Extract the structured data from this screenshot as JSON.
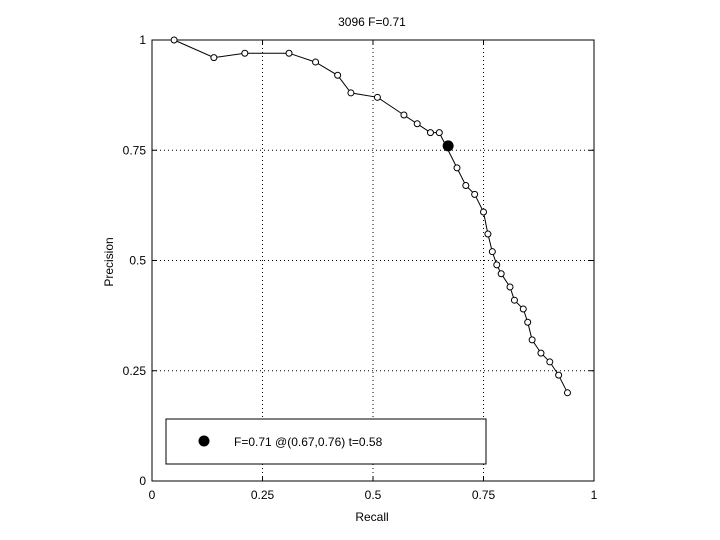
{
  "chart_data": {
    "type": "line",
    "title": "3096 F=0.71",
    "xlabel": "Recall",
    "ylabel": "Precision",
    "xlim": [
      0,
      1
    ],
    "ylim": [
      0,
      1
    ],
    "xticks": [
      "0",
      "0.25",
      "0.5",
      "0.75",
      "1"
    ],
    "yticks": [
      "0",
      "0.25",
      "0.5",
      "0.75",
      "1"
    ],
    "grid": true,
    "legend_position": "bottom-left",
    "series": [
      {
        "marker": "open-circle",
        "points": [
          [
            0.05,
            1.0
          ],
          [
            0.14,
            0.96
          ],
          [
            0.21,
            0.97
          ],
          [
            0.31,
            0.97
          ],
          [
            0.37,
            0.95
          ],
          [
            0.42,
            0.92
          ],
          [
            0.45,
            0.88
          ],
          [
            0.51,
            0.87
          ],
          [
            0.57,
            0.83
          ],
          [
            0.6,
            0.81
          ],
          [
            0.63,
            0.79
          ],
          [
            0.65,
            0.79
          ],
          [
            0.69,
            0.71
          ],
          [
            0.71,
            0.67
          ],
          [
            0.73,
            0.65
          ],
          [
            0.75,
            0.61
          ],
          [
            0.76,
            0.56
          ],
          [
            0.77,
            0.52
          ],
          [
            0.78,
            0.49
          ],
          [
            0.79,
            0.47
          ],
          [
            0.81,
            0.44
          ],
          [
            0.82,
            0.41
          ],
          [
            0.84,
            0.39
          ],
          [
            0.85,
            0.36
          ],
          [
            0.86,
            0.32
          ],
          [
            0.88,
            0.29
          ],
          [
            0.9,
            0.27
          ],
          [
            0.92,
            0.24
          ],
          [
            0.94,
            0.2
          ]
        ]
      }
    ],
    "highlight": {
      "x": 0.67,
      "y": 0.76,
      "marker": "filled-circle"
    },
    "legend": {
      "label": "F=0.71 @(0.67,0.76) t=0.58"
    }
  },
  "colors": {
    "line": "#000000",
    "grid": "#000000",
    "background": "#ffffff"
  }
}
